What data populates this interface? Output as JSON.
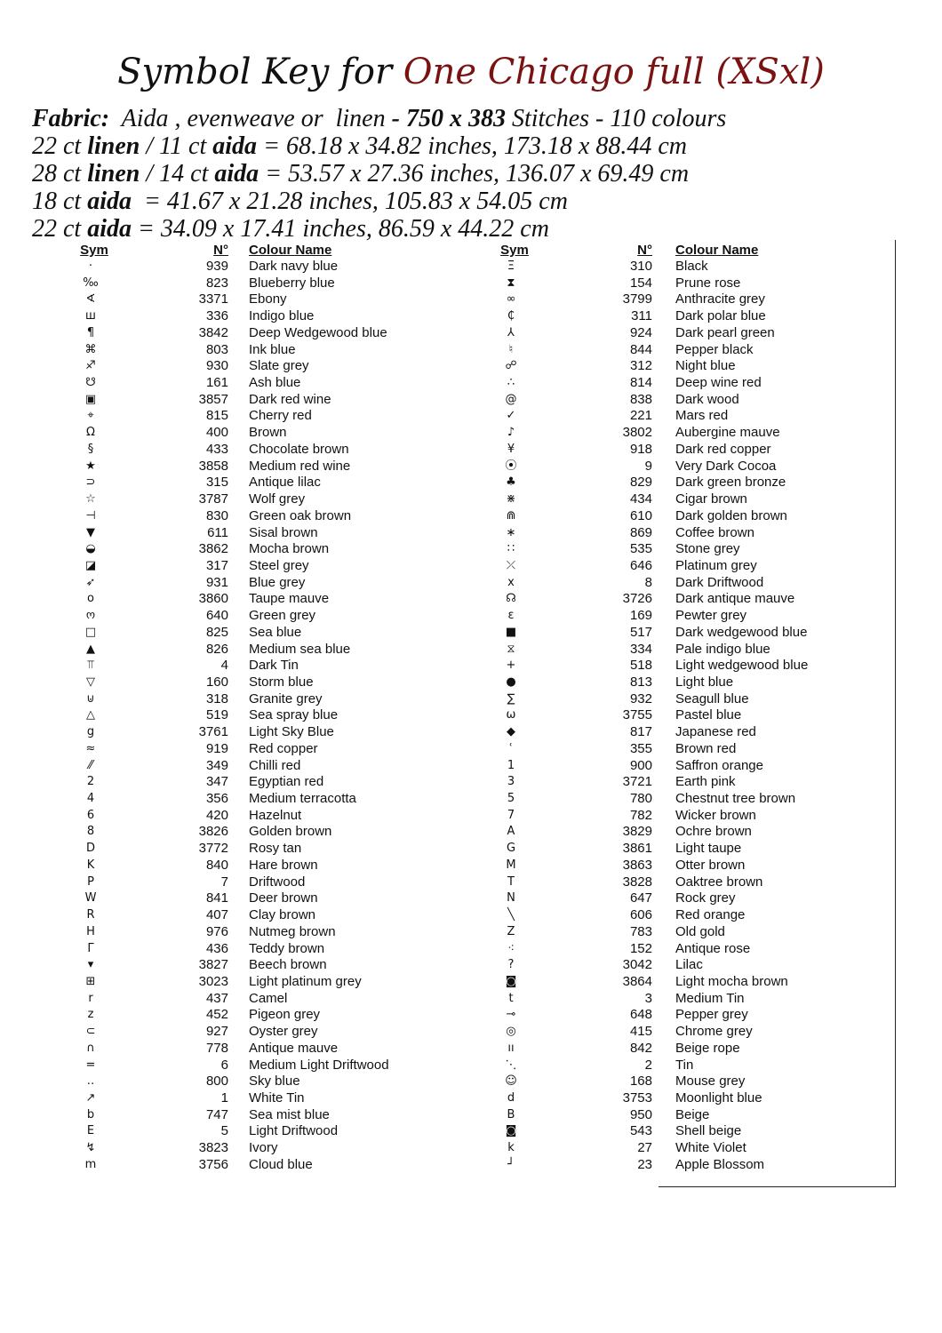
{
  "title": {
    "prefix": "Symbol Key for",
    "name": "One Chicago full (XSxl)",
    "name_color": "#7a1212"
  },
  "info": [
    {
      "parts": [
        [
          "Fabric:",
          true
        ],
        [
          "  Aida , evenweave or  linen ",
          false
        ],
        [
          "- 750 x 383",
          true
        ],
        [
          " Stitches - 110 colours",
          false
        ]
      ]
    },
    {
      "parts": [
        [
          "22 ct ",
          false
        ],
        [
          "linen",
          true
        ],
        [
          " / 11 ct ",
          false
        ],
        [
          "aida",
          true
        ],
        [
          " = 68.18 x 34.82 inches, 173.18 x 88.44 cm",
          false
        ]
      ]
    },
    {
      "parts": [
        [
          "28 ct ",
          false
        ],
        [
          "linen",
          true
        ],
        [
          " / 14 ct ",
          false
        ],
        [
          "aida",
          true
        ],
        [
          " = 53.57 x 27.36 inches, 136.07 x 69.49 cm",
          false
        ]
      ]
    },
    {
      "parts": [
        [
          "18 ct ",
          false
        ],
        [
          "aida",
          true
        ],
        [
          "  = 41.67 x 21.28 inches, 105.83 x 54.05 cm",
          false
        ]
      ]
    },
    {
      "parts": [
        [
          "22 ct ",
          false
        ],
        [
          "aida",
          true
        ],
        [
          " = 34.09 x 17.41 inches, 86.59 x 44.22 cm",
          false
        ]
      ]
    }
  ],
  "headers": {
    "sym": "Sym",
    "num": "N°",
    "name": "Colour Name"
  },
  "left": [
    [
      "·",
      "939",
      "Dark navy blue"
    ],
    [
      "‰",
      "823",
      "Blueberry blue"
    ],
    [
      "∢",
      "3371",
      "Ebony"
    ],
    [
      "ш",
      "336",
      "Indigo blue"
    ],
    [
      "¶",
      "3842",
      "Deep Wedgewood blue"
    ],
    [
      "⌘",
      "803",
      "Ink blue"
    ],
    [
      "♐",
      "930",
      "Slate grey"
    ],
    [
      "☋",
      "161",
      "Ash blue"
    ],
    [
      "▣",
      "3857",
      "Dark red wine"
    ],
    [
      "⌖",
      "815",
      "Cherry red"
    ],
    [
      "Ω",
      "400",
      "Brown"
    ],
    [
      "§",
      "433",
      "Chocolate brown"
    ],
    [
      "★",
      "3858",
      "Medium red wine"
    ],
    [
      "⊃",
      "315",
      "Antique lilac"
    ],
    [
      "☆",
      "3787",
      "Wolf grey"
    ],
    [
      "⊣",
      "830",
      "Green oak brown"
    ],
    [
      "▼",
      "611",
      "Sisal brown"
    ],
    [
      "◒",
      "3862",
      "Mocha brown"
    ],
    [
      "◪",
      "317",
      "Steel grey"
    ],
    [
      "➶",
      "931",
      "Blue grey"
    ],
    [
      "o",
      "3860",
      "Taupe mauve"
    ],
    [
      "ო",
      "640",
      "Green grey"
    ],
    [
      "□",
      "825",
      "Sea blue"
    ],
    [
      "▲",
      "826",
      "Medium sea blue"
    ],
    [
      "⫪",
      "4",
      "Dark Tin"
    ],
    [
      "▽",
      "160",
      "Storm blue"
    ],
    [
      "⊍",
      "318",
      "Granite grey"
    ],
    [
      "△",
      "519",
      "Sea spray blue"
    ],
    [
      "g",
      "3761",
      "Light Sky Blue"
    ],
    [
      "≈",
      "919",
      "Red copper"
    ],
    [
      "⁄⁄",
      "349",
      "Chilli red"
    ],
    [
      "2",
      "347",
      "Egyptian red"
    ],
    [
      "4",
      "356",
      "Medium terracotta"
    ],
    [
      "6",
      "420",
      "Hazelnut"
    ],
    [
      "8",
      "3826",
      "Golden brown"
    ],
    [
      "D",
      "3772",
      "Rosy tan"
    ],
    [
      "K",
      "840",
      "Hare brown"
    ],
    [
      "P",
      "7",
      "Driftwood"
    ],
    [
      "W",
      "841",
      "Deer brown"
    ],
    [
      "R",
      "407",
      "Clay brown"
    ],
    [
      "H",
      "976",
      "Nutmeg brown"
    ],
    [
      "Γ",
      "436",
      "Teddy brown"
    ],
    [
      "▾",
      "3827",
      "Beech brown"
    ],
    [
      "⊞",
      "3023",
      "Light platinum grey"
    ],
    [
      "r",
      "437",
      "Camel"
    ],
    [
      "z",
      "452",
      "Pigeon grey"
    ],
    [
      "⊂",
      "927",
      "Oyster grey"
    ],
    [
      "∩",
      "778",
      "Antique mauve"
    ],
    [
      "=",
      "6",
      "Medium Light Driftwood"
    ],
    [
      "‥",
      "800",
      "Sky blue"
    ],
    [
      "↗",
      "1",
      "White Tin"
    ],
    [
      "b",
      "747",
      "Sea mist blue"
    ],
    [
      "E",
      "5",
      "Light Driftwood"
    ],
    [
      "↯",
      "3823",
      "Ivory"
    ],
    [
      "m",
      "3756",
      "Cloud blue"
    ]
  ],
  "right": [
    [
      "Ξ",
      "310",
      "Black"
    ],
    [
      "⧗",
      "154",
      "Prune rose"
    ],
    [
      "∞",
      "3799",
      "Anthracite grey"
    ],
    [
      "₵",
      "311",
      "Dark polar blue"
    ],
    [
      "⅄",
      "924",
      "Dark pearl green"
    ],
    [
      "♮",
      "844",
      "Pepper black"
    ],
    [
      "☍",
      "312",
      "Night blue"
    ],
    [
      "∴",
      "814",
      "Deep wine red"
    ],
    [
      "@",
      "838",
      "Dark wood"
    ],
    [
      "✓",
      "221",
      "Mars red"
    ],
    [
      "♪",
      "3802",
      "Aubergine mauve"
    ],
    [
      "¥",
      "918",
      "Dark red copper"
    ],
    [
      "⦿",
      "9",
      "Very Dark Cocoa"
    ],
    [
      "♣",
      "829",
      "Dark green bronze"
    ],
    [
      "⋇",
      "434",
      "Cigar brown"
    ],
    [
      "⋒",
      "610",
      "Dark golden brown"
    ],
    [
      "∗",
      "869",
      "Coffee brown"
    ],
    [
      "∷",
      "535",
      "Stone grey"
    ],
    [
      "⤫",
      "646",
      "Platinum grey"
    ],
    [
      "x",
      "8",
      "Dark Driftwood"
    ],
    [
      "☊",
      "3726",
      "Dark antique mauve"
    ],
    [
      "ε",
      "169",
      "Pewter grey"
    ],
    [
      "■",
      "517",
      "Dark wedgewood blue"
    ],
    [
      "⧖",
      "334",
      "Pale indigo blue"
    ],
    [
      "+",
      "518",
      "Light wedgewood blue"
    ],
    [
      "●",
      "813",
      "Light blue"
    ],
    [
      "∑",
      "932",
      "Seagull blue"
    ],
    [
      "ω",
      "3755",
      "Pastel blue"
    ],
    [
      "◆",
      "817",
      "Japanese red"
    ],
    [
      "ʿ",
      "355",
      "Brown red"
    ],
    [
      "1",
      "900",
      "Saffron orange"
    ],
    [
      "3",
      "3721",
      "Earth pink"
    ],
    [
      "5",
      "780",
      "Chestnut tree brown"
    ],
    [
      "7",
      "782",
      "Wicker brown"
    ],
    [
      "A",
      "3829",
      "Ochre brown"
    ],
    [
      "G",
      "3861",
      "Light taupe"
    ],
    [
      "M",
      "3863",
      "Otter brown"
    ],
    [
      "T",
      "3828",
      "Oaktree brown"
    ],
    [
      "N",
      "647",
      "Rock grey"
    ],
    [
      "╲",
      "606",
      "Red orange"
    ],
    [
      "Z",
      "783",
      "Old gold"
    ],
    [
      "⁖",
      "152",
      "Antique rose"
    ],
    [
      "?",
      "3042",
      "Lilac"
    ],
    [
      "◙",
      "3864",
      "Light mocha brown"
    ],
    [
      "t",
      "3",
      "Medium Tin"
    ],
    [
      "⊸",
      "648",
      "Pepper grey"
    ],
    [
      "◎",
      "415",
      "Chrome grey"
    ],
    [
      "ıı",
      "842",
      "Beige rope"
    ],
    [
      "⋱",
      "2",
      "Tin"
    ],
    [
      "☺",
      "168",
      "Mouse grey"
    ],
    [
      "d",
      "3753",
      "Moonlight blue"
    ],
    [
      "B",
      "950",
      "Beige"
    ],
    [
      "◙",
      "543",
      "Shell beige"
    ],
    [
      "k",
      "27",
      "White Violet"
    ],
    [
      "┘",
      "23",
      "Apple Blossom"
    ]
  ]
}
